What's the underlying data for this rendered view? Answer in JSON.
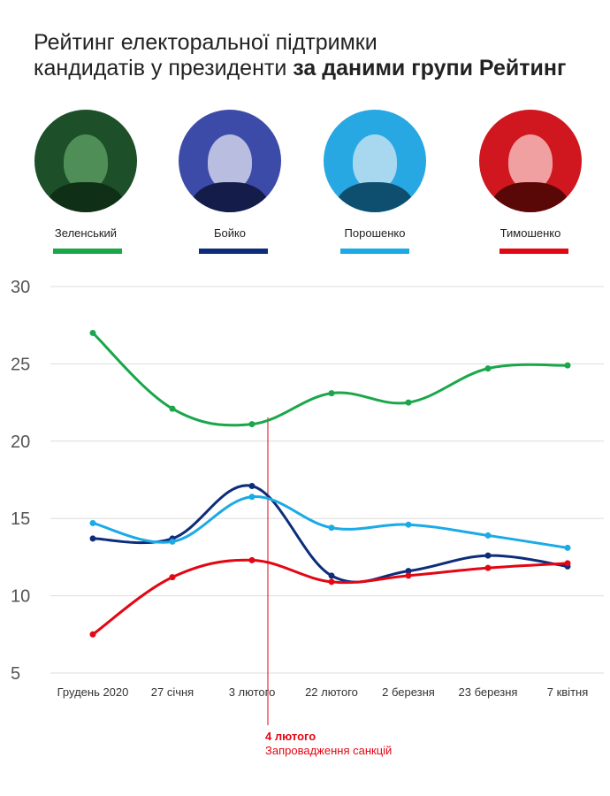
{
  "title": {
    "line1": "Рейтинг електоральної підтримки",
    "line2_regular": "кандидатів у президенти ",
    "line2_bold": "за даними групи Рейтинг"
  },
  "candidates": [
    {
      "name": "Зеленський",
      "color": "#1aa64a",
      "tint": "#2c7a3c",
      "icon": "candidate-photo"
    },
    {
      "name": "Бойко",
      "color": "#0d2d7a",
      "tint": "#3b4aa6",
      "icon": "candidate-photo"
    },
    {
      "name": "Порошенко",
      "color": "#1aaae6",
      "tint": "#23a6e0",
      "icon": "candidate-photo"
    },
    {
      "name": "Тимошенко",
      "color": "#e30613",
      "tint": "#d2141c",
      "icon": "candidate-photo"
    }
  ],
  "annotation": {
    "date": "4 лютого",
    "text": "Запровадження санкцій",
    "color": "#e30613"
  },
  "chart_data": {
    "type": "line",
    "title": "Рейтинг електоральної підтримки кандидатів у президенти за даними групи Рейтинг",
    "categories": [
      "Грудень 2020",
      "27 січня",
      "3 лютого",
      "22 лютого",
      "2 березня",
      "23 березня",
      "7 квітня"
    ],
    "ylim": [
      5,
      30
    ],
    "yticks": [
      "5",
      "10",
      "15",
      "20",
      "25",
      "30"
    ],
    "grid": true,
    "series": [
      {
        "name": "Зеленський",
        "color": "#1aa64a",
        "values": [
          27.0,
          22.1,
          21.1,
          23.1,
          22.5,
          24.7,
          24.9
        ]
      },
      {
        "name": "Бойко",
        "color": "#0d2d7a",
        "values": [
          13.7,
          13.7,
          17.1,
          11.3,
          11.6,
          12.6,
          11.9
        ]
      },
      {
        "name": "Порошенко",
        "color": "#1aaae6",
        "values": [
          14.7,
          13.5,
          16.4,
          14.4,
          14.6,
          13.9,
          13.1
        ]
      },
      {
        "name": "Тимошенко",
        "color": "#e30613",
        "values": [
          7.5,
          11.2,
          12.3,
          10.9,
          11.3,
          11.8,
          12.1
        ]
      }
    ],
    "annotation": {
      "label": "4 лютого",
      "text": "Запровадження санкцій"
    }
  }
}
